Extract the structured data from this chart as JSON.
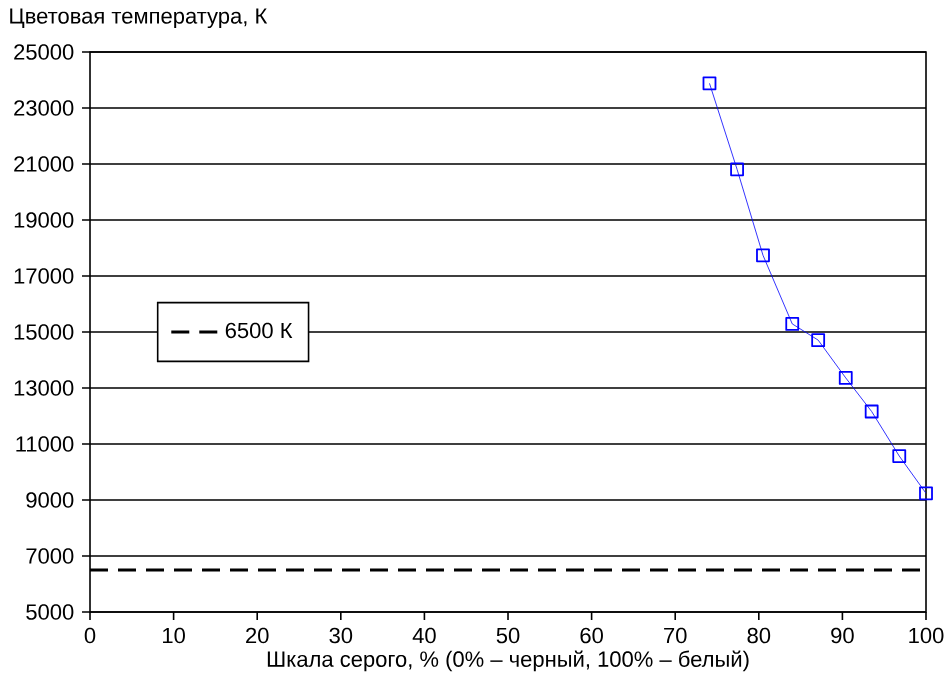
{
  "chart_data": {
    "type": "line",
    "ylabel": "Цветовая температура, К",
    "xlabel": "Шкала серого, % (0% – черный, 100% – белый)",
    "series": [
      {
        "color": "#0000ff",
        "x": [
          74.1,
          77.4,
          80.5,
          84.0,
          87.1,
          90.4,
          93.5,
          96.8,
          100
        ],
        "values": [
          23880,
          20810,
          17740,
          15290,
          14710,
          13360,
          12160,
          10570,
          9240
        ]
      }
    ],
    "xlim": [
      0,
      100
    ],
    "xticks": [
      0,
      10,
      20,
      30,
      40,
      50,
      60,
      70,
      80,
      90,
      100
    ],
    "ylim": [
      5000,
      25000
    ],
    "yticks": [
      5000,
      7000,
      9000,
      11000,
      13000,
      15000,
      17000,
      19000,
      21000,
      23000,
      25000
    ],
    "ref_lines": [
      {
        "axis": "y",
        "value": 6500,
        "label": "6500 К",
        "color": "#000000",
        "line_style": "dashed"
      }
    ],
    "grid": "y",
    "legend": "left",
    "marker": "square",
    "line_style": "solid"
  }
}
